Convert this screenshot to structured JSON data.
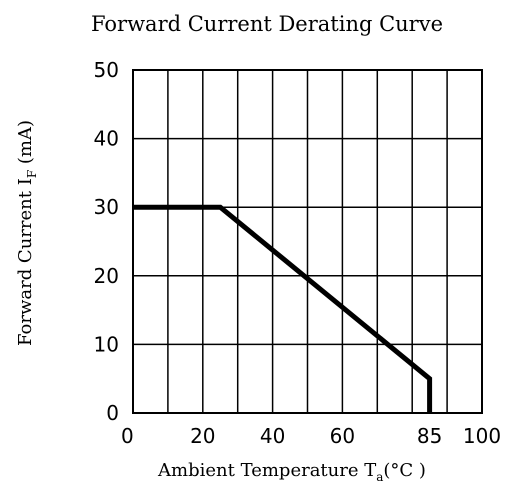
{
  "chart_data": {
    "type": "line",
    "title": "Forward Current Derating Curve",
    "xlabel": {
      "main": "Ambient Temperature T",
      "subscript": "a",
      "unit": "(°C )"
    },
    "ylabel": {
      "main": "Forward Current   I",
      "subscript": "F",
      "unit": " (mA)"
    },
    "xlim": [
      0,
      100
    ],
    "ylim": [
      0,
      50
    ],
    "x_ticks": [
      0,
      20,
      40,
      60,
      85,
      100
    ],
    "x_tick_labels": [
      "0",
      "20",
      "40",
      "60",
      "85",
      "100"
    ],
    "y_ticks": [
      0,
      10,
      20,
      30,
      40,
      50
    ],
    "y_tick_labels": [
      "0",
      "10",
      "20",
      "30",
      "40",
      "50"
    ],
    "grid": true,
    "grid_x": [
      10,
      20,
      30,
      40,
      50,
      60,
      70,
      80,
      90
    ],
    "grid_y": [
      10,
      20,
      30,
      40
    ],
    "series": [
      {
        "x": [
          0,
          25,
          85,
          85
        ],
        "y": [
          30,
          30,
          5,
          0
        ]
      }
    ]
  }
}
